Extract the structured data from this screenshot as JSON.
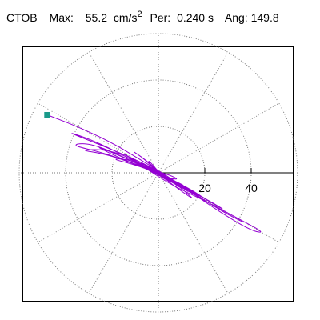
{
  "header": {
    "station": "CTOB",
    "max_label": "Max:",
    "max_value": "55.2",
    "max_unit": "cm/s",
    "max_exponent": "2",
    "per_label": "Per:",
    "per_value": "0.240 s",
    "ang_label": "Ang: 149.8"
  },
  "chart_data": {
    "type": "polar-particle-motion",
    "rings": [
      20,
      40,
      60
    ],
    "spokes_deg": [
      0,
      30,
      60,
      90,
      120,
      150,
      180,
      210,
      240,
      270,
      300,
      330
    ],
    "grid_style": "dotted",
    "tick_labels": [
      "20",
      "40"
    ],
    "peak": {
      "amplitude": 55.2,
      "angle_deg": 149.8
    },
    "trace_color": "#9400d3",
    "marker_color": "#1a9a8a",
    "trace_points": [
      [
        -48,
        25
      ],
      [
        -35,
        20
      ],
      [
        -20,
        13
      ],
      [
        -5,
        4
      ],
      [
        8,
        -4
      ],
      [
        25,
        -16
      ],
      [
        40,
        -25
      ],
      [
        46,
        -26
      ],
      [
        35,
        -20
      ],
      [
        20,
        -12
      ],
      [
        5,
        -5
      ],
      [
        -10,
        5
      ],
      [
        -28,
        14
      ],
      [
        -40,
        18
      ],
      [
        -30,
        14
      ],
      [
        -15,
        8
      ],
      [
        0,
        1
      ],
      [
        14,
        -8
      ],
      [
        28,
        -17
      ],
      [
        38,
        -22
      ],
      [
        30,
        -18
      ],
      [
        15,
        -9
      ],
      [
        0,
        -1
      ],
      [
        -15,
        7
      ],
      [
        -30,
        13
      ],
      [
        -38,
        12
      ],
      [
        -25,
        9
      ],
      [
        -10,
        4
      ],
      [
        4,
        -2
      ],
      [
        18,
        -10
      ],
      [
        30,
        -17
      ],
      [
        22,
        -12
      ],
      [
        8,
        -5
      ],
      [
        -6,
        3
      ],
      [
        -20,
        10
      ],
      [
        -35,
        10
      ],
      [
        -22,
        8
      ],
      [
        -8,
        3
      ],
      [
        5,
        -3
      ],
      [
        15,
        -8
      ],
      [
        25,
        -14
      ],
      [
        18,
        -10
      ],
      [
        6,
        -4
      ],
      [
        -5,
        2
      ],
      [
        -18,
        8
      ],
      [
        -28,
        12
      ],
      [
        -18,
        7
      ],
      [
        -6,
        2
      ],
      [
        3,
        -2
      ],
      [
        12,
        -6
      ],
      [
        20,
        -11
      ],
      [
        14,
        -8
      ],
      [
        4,
        -3
      ],
      [
        -6,
        3
      ],
      [
        -14,
        6
      ],
      [
        -20,
        6
      ],
      [
        -12,
        4
      ],
      [
        -3,
        1
      ],
      [
        6,
        -3
      ],
      [
        14,
        -9
      ],
      [
        10,
        -6
      ],
      [
        2,
        -1
      ],
      [
        -8,
        4
      ],
      [
        -16,
        9
      ],
      [
        -10,
        5
      ],
      [
        0,
        0
      ],
      [
        8,
        -5
      ],
      [
        16,
        -12
      ],
      [
        10,
        -8
      ],
      [
        2,
        -2
      ],
      [
        -6,
        6
      ],
      [
        -12,
        10
      ],
      [
        -6,
        6
      ],
      [
        2,
        -1
      ],
      [
        10,
        -7
      ],
      [
        6,
        -4
      ],
      [
        -2,
        2
      ],
      [
        -10,
        5
      ],
      [
        -5,
        2
      ],
      [
        4,
        -3
      ],
      [
        12,
        -6
      ],
      [
        8,
        -4
      ],
      [
        0,
        0
      ],
      [
        -8,
        3
      ],
      [
        -4,
        1
      ],
      [
        3,
        -2
      ],
      [
        9,
        -3
      ],
      [
        5,
        -1
      ],
      [
        -2,
        1
      ],
      [
        -7,
        4
      ],
      [
        -3,
        2
      ],
      [
        2,
        -1
      ],
      [
        6,
        -4
      ],
      [
        3,
        -3
      ],
      [
        -1,
        0
      ],
      [
        -5,
        6
      ],
      [
        -2,
        3
      ],
      [
        1,
        -1
      ],
      [
        4,
        -2
      ],
      [
        1,
        0
      ],
      [
        -3,
        2
      ],
      [
        0,
        0
      ]
    ]
  }
}
